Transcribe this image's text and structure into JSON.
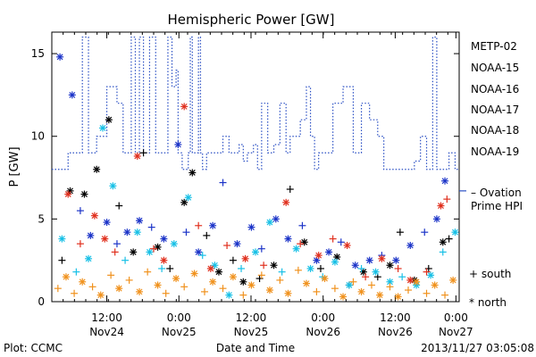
{
  "chart_data": {
    "type": "scatter",
    "title": "Hemispheric Power [GW]",
    "ylabel": "P [GW]",
    "xlabel": "Date and Time",
    "ylim": [
      0,
      16.3
    ],
    "yticks": [
      0,
      5,
      10,
      15
    ],
    "xlim": [
      0,
      1
    ],
    "xticks": [
      {
        "x": 0.135,
        "time": "12:00",
        "date": "Nov24"
      },
      {
        "x": 0.312,
        "time": "0:00",
        "date": "Nov25"
      },
      {
        "x": 0.489,
        "time": "12:00",
        "date": "Nov25"
      },
      {
        "x": 0.666,
        "time": "0:00",
        "date": "Nov26"
      },
      {
        "x": 0.843,
        "time": "12:00",
        "date": "Nov26"
      },
      {
        "x": 0.992,
        "time": "0:00",
        "date": "Nov27"
      }
    ],
    "minor_tick_count": 36,
    "legend_placement": "right",
    "series": [
      {
        "name": "METP-02",
        "color": "#000000"
      },
      {
        "name": "NOAA-15",
        "color": "#1c34c8"
      },
      {
        "name": "NOAA-16",
        "color": "#18c0e6"
      },
      {
        "name": "NOAA-17",
        "color": "#2ae88c"
      },
      {
        "name": "NOAA-18",
        "color": "#f0921e"
      },
      {
        "name": "NOAA-19",
        "color": "#e0301e"
      }
    ],
    "markers": [
      {
        "label": "+ south",
        "kind": "south"
      },
      {
        "label": "* north",
        "kind": "north"
      }
    ],
    "ovation_line": {
      "label_line1": "– Ovation",
      "label_line2": "Prime HPI",
      "color": "#2a4fc4",
      "level": 6.7,
      "steps": [
        [
          0.0,
          8.0
        ],
        [
          0.04,
          9.0
        ],
        [
          0.075,
          16.0
        ],
        [
          0.09,
          9.0
        ],
        [
          0.11,
          10.0
        ],
        [
          0.135,
          13.0
        ],
        [
          0.16,
          12.0
        ],
        [
          0.175,
          9.0
        ],
        [
          0.195,
          16.0
        ],
        [
          0.205,
          9.0
        ],
        [
          0.215,
          16.0
        ],
        [
          0.225,
          9.0
        ],
        [
          0.24,
          16.0
        ],
        [
          0.255,
          9.0
        ],
        [
          0.285,
          16.0
        ],
        [
          0.295,
          13.0
        ],
        [
          0.305,
          14.0
        ],
        [
          0.31,
          9.0
        ],
        [
          0.32,
          8.0
        ],
        [
          0.335,
          9.0
        ],
        [
          0.34,
          16.0
        ],
        [
          0.345,
          9.0
        ],
        [
          0.36,
          16.0
        ],
        [
          0.365,
          9.0
        ],
        [
          0.37,
          8.0
        ],
        [
          0.38,
          9.0
        ],
        [
          0.42,
          10.0
        ],
        [
          0.435,
          9.0
        ],
        [
          0.46,
          9.5
        ],
        [
          0.47,
          8.5
        ],
        [
          0.48,
          9.0
        ],
        [
          0.495,
          9.5
        ],
        [
          0.505,
          8.0
        ],
        [
          0.515,
          12.0
        ],
        [
          0.53,
          9.0
        ],
        [
          0.545,
          9.5
        ],
        [
          0.56,
          12.0
        ],
        [
          0.575,
          9.0
        ],
        [
          0.585,
          10.0
        ],
        [
          0.61,
          11.0
        ],
        [
          0.625,
          13.0
        ],
        [
          0.635,
          10.0
        ],
        [
          0.645,
          8.0
        ],
        [
          0.655,
          9.0
        ],
        [
          0.69,
          12.0
        ],
        [
          0.715,
          13.0
        ],
        [
          0.74,
          9.0
        ],
        [
          0.76,
          12.0
        ],
        [
          0.78,
          11.0
        ],
        [
          0.8,
          10.0
        ],
        [
          0.815,
          8.0
        ],
        [
          0.89,
          8.5
        ],
        [
          0.905,
          10.0
        ],
        [
          0.92,
          8.0
        ],
        [
          0.935,
          16.0
        ],
        [
          0.945,
          8.0
        ],
        [
          0.965,
          8.0
        ],
        [
          0.975,
          9.0
        ],
        [
          0.99,
          8.0
        ],
        [
          1.0,
          8.0
        ]
      ]
    },
    "points": [
      {
        "s": 0,
        "m": "south",
        "x": 0.025,
        "y": 2.5
      },
      {
        "s": 0,
        "m": "north",
        "x": 0.045,
        "y": 6.7
      },
      {
        "s": 0,
        "m": "north",
        "x": 0.08,
        "y": 6.5
      },
      {
        "s": 0,
        "m": "north",
        "x": 0.11,
        "y": 8.0
      },
      {
        "s": 0,
        "m": "north",
        "x": 0.14,
        "y": 11.0
      },
      {
        "s": 0,
        "m": "south",
        "x": 0.165,
        "y": 5.8
      },
      {
        "s": 0,
        "m": "north",
        "x": 0.2,
        "y": 3.0
      },
      {
        "s": 0,
        "m": "south",
        "x": 0.225,
        "y": 9.0
      },
      {
        "s": 0,
        "m": "north",
        "x": 0.26,
        "y": 3.3
      },
      {
        "s": 0,
        "m": "south",
        "x": 0.29,
        "y": 2.0
      },
      {
        "s": 0,
        "m": "north",
        "x": 0.325,
        "y": 6.0
      },
      {
        "s": 0,
        "m": "north",
        "x": 0.345,
        "y": 7.8
      },
      {
        "s": 0,
        "m": "south",
        "x": 0.38,
        "y": 4.0
      },
      {
        "s": 0,
        "m": "north",
        "x": 0.41,
        "y": 1.8
      },
      {
        "s": 0,
        "m": "south",
        "x": 0.445,
        "y": 2.5
      },
      {
        "s": 0,
        "m": "north",
        "x": 0.47,
        "y": 1.2
      },
      {
        "s": 0,
        "m": "south",
        "x": 0.51,
        "y": 1.4
      },
      {
        "s": 0,
        "m": "north",
        "x": 0.545,
        "y": 2.2
      },
      {
        "s": 0,
        "m": "south",
        "x": 0.585,
        "y": 6.8
      },
      {
        "s": 0,
        "m": "north",
        "x": 0.62,
        "y": 3.6
      },
      {
        "s": 0,
        "m": "south",
        "x": 0.66,
        "y": 2.0
      },
      {
        "s": 0,
        "m": "north",
        "x": 0.7,
        "y": 2.7
      },
      {
        "s": 0,
        "m": "south",
        "x": 0.73,
        "y": 1.0
      },
      {
        "s": 0,
        "m": "north",
        "x": 0.765,
        "y": 1.8
      },
      {
        "s": 0,
        "m": "south",
        "x": 0.8,
        "y": 1.5
      },
      {
        "s": 0,
        "m": "north",
        "x": 0.83,
        "y": 2.2
      },
      {
        "s": 0,
        "m": "south",
        "x": 0.855,
        "y": 4.2
      },
      {
        "s": 0,
        "m": "north",
        "x": 0.89,
        "y": 1.3
      },
      {
        "s": 0,
        "m": "south",
        "x": 0.925,
        "y": 2.0
      },
      {
        "s": 0,
        "m": "north",
        "x": 0.96,
        "y": 3.6
      },
      {
        "s": 0,
        "m": "south",
        "x": 0.975,
        "y": 3.8
      },
      {
        "s": 1,
        "m": "north",
        "x": 0.02,
        "y": 14.8
      },
      {
        "s": 1,
        "m": "north",
        "x": 0.05,
        "y": 12.5
      },
      {
        "s": 1,
        "m": "south",
        "x": 0.07,
        "y": 5.5
      },
      {
        "s": 1,
        "m": "north",
        "x": 0.095,
        "y": 4.0
      },
      {
        "s": 1,
        "m": "north",
        "x": 0.135,
        "y": 4.8
      },
      {
        "s": 1,
        "m": "south",
        "x": 0.16,
        "y": 3.5
      },
      {
        "s": 1,
        "m": "north",
        "x": 0.185,
        "y": 4.2
      },
      {
        "s": 1,
        "m": "north",
        "x": 0.215,
        "y": 4.9
      },
      {
        "s": 1,
        "m": "south",
        "x": 0.245,
        "y": 4.5
      },
      {
        "s": 1,
        "m": "north",
        "x": 0.275,
        "y": 3.8
      },
      {
        "s": 1,
        "m": "north",
        "x": 0.31,
        "y": 9.5
      },
      {
        "s": 1,
        "m": "south",
        "x": 0.33,
        "y": 4.2
      },
      {
        "s": 1,
        "m": "north",
        "x": 0.36,
        "y": 3.0
      },
      {
        "s": 1,
        "m": "north",
        "x": 0.395,
        "y": 4.6
      },
      {
        "s": 1,
        "m": "south",
        "x": 0.42,
        "y": 7.2
      },
      {
        "s": 1,
        "m": "north",
        "x": 0.455,
        "y": 3.5
      },
      {
        "s": 1,
        "m": "north",
        "x": 0.49,
        "y": 4.5
      },
      {
        "s": 1,
        "m": "south",
        "x": 0.515,
        "y": 3.2
      },
      {
        "s": 1,
        "m": "north",
        "x": 0.55,
        "y": 5.0
      },
      {
        "s": 1,
        "m": "north",
        "x": 0.58,
        "y": 3.8
      },
      {
        "s": 1,
        "m": "south",
        "x": 0.615,
        "y": 4.6
      },
      {
        "s": 1,
        "m": "north",
        "x": 0.65,
        "y": 2.5
      },
      {
        "s": 1,
        "m": "north",
        "x": 0.68,
        "y": 3.0
      },
      {
        "s": 1,
        "m": "south",
        "x": 0.71,
        "y": 3.6
      },
      {
        "s": 1,
        "m": "north",
        "x": 0.745,
        "y": 2.2
      },
      {
        "s": 1,
        "m": "north",
        "x": 0.78,
        "y": 2.5
      },
      {
        "s": 1,
        "m": "south",
        "x": 0.81,
        "y": 2.8
      },
      {
        "s": 1,
        "m": "north",
        "x": 0.845,
        "y": 2.5
      },
      {
        "s": 1,
        "m": "north",
        "x": 0.88,
        "y": 3.4
      },
      {
        "s": 1,
        "m": "south",
        "x": 0.915,
        "y": 4.2
      },
      {
        "s": 1,
        "m": "north",
        "x": 0.945,
        "y": 5.0
      },
      {
        "s": 1,
        "m": "north",
        "x": 0.965,
        "y": 7.3
      },
      {
        "s": 2,
        "m": "north",
        "x": 0.025,
        "y": 3.8
      },
      {
        "s": 2,
        "m": "south",
        "x": 0.06,
        "y": 1.8
      },
      {
        "s": 2,
        "m": "north",
        "x": 0.09,
        "y": 2.6
      },
      {
        "s": 2,
        "m": "north",
        "x": 0.125,
        "y": 10.5
      },
      {
        "s": 2,
        "m": "north",
        "x": 0.15,
        "y": 7.0
      },
      {
        "s": 2,
        "m": "south",
        "x": 0.18,
        "y": 2.5
      },
      {
        "s": 2,
        "m": "north",
        "x": 0.21,
        "y": 4.2
      },
      {
        "s": 2,
        "m": "north",
        "x": 0.24,
        "y": 3.0
      },
      {
        "s": 2,
        "m": "south",
        "x": 0.27,
        "y": 2.0
      },
      {
        "s": 2,
        "m": "north",
        "x": 0.3,
        "y": 3.5
      },
      {
        "s": 2,
        "m": "north",
        "x": 0.335,
        "y": 6.3
      },
      {
        "s": 2,
        "m": "south",
        "x": 0.37,
        "y": 2.8
      },
      {
        "s": 2,
        "m": "north",
        "x": 0.4,
        "y": 2.2
      },
      {
        "s": 2,
        "m": "north",
        "x": 0.435,
        "y": 0.4
      },
      {
        "s": 2,
        "m": "south",
        "x": 0.465,
        "y": 2.0
      },
      {
        "s": 2,
        "m": "north",
        "x": 0.5,
        "y": 3.0
      },
      {
        "s": 2,
        "m": "north",
        "x": 0.535,
        "y": 4.8
      },
      {
        "s": 2,
        "m": "south",
        "x": 0.565,
        "y": 1.8
      },
      {
        "s": 2,
        "m": "north",
        "x": 0.6,
        "y": 3.2
      },
      {
        "s": 2,
        "m": "north",
        "x": 0.635,
        "y": 2.0
      },
      {
        "s": 2,
        "m": "south",
        "x": 0.665,
        "y": 1.5
      },
      {
        "s": 2,
        "m": "north",
        "x": 0.695,
        "y": 2.4
      },
      {
        "s": 2,
        "m": "north",
        "x": 0.73,
        "y": 1.0
      },
      {
        "s": 2,
        "m": "south",
        "x": 0.76,
        "y": 2.0
      },
      {
        "s": 2,
        "m": "north",
        "x": 0.795,
        "y": 1.8
      },
      {
        "s": 2,
        "m": "north",
        "x": 0.83,
        "y": 1.2
      },
      {
        "s": 2,
        "m": "south",
        "x": 0.86,
        "y": 1.5
      },
      {
        "s": 2,
        "m": "north",
        "x": 0.895,
        "y": 1.0
      },
      {
        "s": 2,
        "m": "north",
        "x": 0.93,
        "y": 1.6
      },
      {
        "s": 2,
        "m": "south",
        "x": 0.96,
        "y": 3.0
      },
      {
        "s": 2,
        "m": "north",
        "x": 0.99,
        "y": 4.2
      },
      {
        "s": 4,
        "m": "south",
        "x": 0.015,
        "y": 0.8
      },
      {
        "s": 4,
        "m": "north",
        "x": 0.035,
        "y": 1.5
      },
      {
        "s": 4,
        "m": "south",
        "x": 0.055,
        "y": 0.5
      },
      {
        "s": 4,
        "m": "north",
        "x": 0.075,
        "y": 1.2
      },
      {
        "s": 4,
        "m": "south",
        "x": 0.1,
        "y": 0.9
      },
      {
        "s": 4,
        "m": "north",
        "x": 0.12,
        "y": 0.4
      },
      {
        "s": 4,
        "m": "south",
        "x": 0.145,
        "y": 1.6
      },
      {
        "s": 4,
        "m": "north",
        "x": 0.165,
        "y": 0.8
      },
      {
        "s": 4,
        "m": "south",
        "x": 0.19,
        "y": 1.3
      },
      {
        "s": 4,
        "m": "north",
        "x": 0.215,
        "y": 0.6
      },
      {
        "s": 4,
        "m": "south",
        "x": 0.235,
        "y": 1.8
      },
      {
        "s": 4,
        "m": "north",
        "x": 0.26,
        "y": 1.0
      },
      {
        "s": 4,
        "m": "south",
        "x": 0.28,
        "y": 0.5
      },
      {
        "s": 4,
        "m": "north",
        "x": 0.305,
        "y": 1.4
      },
      {
        "s": 4,
        "m": "south",
        "x": 0.325,
        "y": 0.9
      },
      {
        "s": 4,
        "m": "north",
        "x": 0.35,
        "y": 1.7
      },
      {
        "s": 4,
        "m": "south",
        "x": 0.375,
        "y": 0.6
      },
      {
        "s": 4,
        "m": "north",
        "x": 0.395,
        "y": 1.2
      },
      {
        "s": 4,
        "m": "south",
        "x": 0.42,
        "y": 0.8
      },
      {
        "s": 4,
        "m": "north",
        "x": 0.445,
        "y": 1.5
      },
      {
        "s": 4,
        "m": "south",
        "x": 0.47,
        "y": 0.4
      },
      {
        "s": 4,
        "m": "north",
        "x": 0.49,
        "y": 1.0
      },
      {
        "s": 4,
        "m": "south",
        "x": 0.515,
        "y": 1.6
      },
      {
        "s": 4,
        "m": "north",
        "x": 0.535,
        "y": 0.7
      },
      {
        "s": 4,
        "m": "south",
        "x": 0.56,
        "y": 1.3
      },
      {
        "s": 4,
        "m": "north",
        "x": 0.58,
        "y": 0.5
      },
      {
        "s": 4,
        "m": "south",
        "x": 0.605,
        "y": 1.9
      },
      {
        "s": 4,
        "m": "north",
        "x": 0.625,
        "y": 1.1
      },
      {
        "s": 4,
        "m": "south",
        "x": 0.65,
        "y": 0.6
      },
      {
        "s": 4,
        "m": "north",
        "x": 0.67,
        "y": 1.4
      },
      {
        "s": 4,
        "m": "south",
        "x": 0.695,
        "y": 0.8
      },
      {
        "s": 4,
        "m": "north",
        "x": 0.715,
        "y": 0.3
      },
      {
        "s": 4,
        "m": "south",
        "x": 0.74,
        "y": 1.2
      },
      {
        "s": 4,
        "m": "north",
        "x": 0.76,
        "y": 0.6
      },
      {
        "s": 4,
        "m": "south",
        "x": 0.785,
        "y": 1.0
      },
      {
        "s": 4,
        "m": "north",
        "x": 0.805,
        "y": 0.4
      },
      {
        "s": 4,
        "m": "south",
        "x": 0.83,
        "y": 0.9
      },
      {
        "s": 4,
        "m": "north",
        "x": 0.85,
        "y": 0.3
      },
      {
        "s": 4,
        "m": "south",
        "x": 0.875,
        "y": 0.7
      },
      {
        "s": 4,
        "m": "north",
        "x": 0.895,
        "y": 1.2
      },
      {
        "s": 4,
        "m": "south",
        "x": 0.92,
        "y": 0.5
      },
      {
        "s": 4,
        "m": "north",
        "x": 0.94,
        "y": 1.0
      },
      {
        "s": 4,
        "m": "south",
        "x": 0.965,
        "y": 0.4
      },
      {
        "s": 4,
        "m": "north",
        "x": 0.985,
        "y": 1.3
      },
      {
        "s": 5,
        "m": "north",
        "x": 0.04,
        "y": 6.5
      },
      {
        "s": 5,
        "m": "south",
        "x": 0.07,
        "y": 3.5
      },
      {
        "s": 5,
        "m": "north",
        "x": 0.105,
        "y": 5.2
      },
      {
        "s": 5,
        "m": "north",
        "x": 0.13,
        "y": 3.8
      },
      {
        "s": 5,
        "m": "south",
        "x": 0.155,
        "y": 3.0
      },
      {
        "s": 5,
        "m": "north",
        "x": 0.21,
        "y": 8.8
      },
      {
        "s": 5,
        "m": "south",
        "x": 0.25,
        "y": 3.2
      },
      {
        "s": 5,
        "m": "north",
        "x": 0.275,
        "y": 2.5
      },
      {
        "s": 5,
        "m": "north",
        "x": 0.325,
        "y": 11.8
      },
      {
        "s": 5,
        "m": "south",
        "x": 0.36,
        "y": 4.6
      },
      {
        "s": 5,
        "m": "north",
        "x": 0.39,
        "y": 2.0
      },
      {
        "s": 5,
        "m": "south",
        "x": 0.43,
        "y": 3.4
      },
      {
        "s": 5,
        "m": "north",
        "x": 0.475,
        "y": 2.6
      },
      {
        "s": 5,
        "m": "south",
        "x": 0.52,
        "y": 2.2
      },
      {
        "s": 5,
        "m": "north",
        "x": 0.575,
        "y": 6.0
      },
      {
        "s": 5,
        "m": "south",
        "x": 0.61,
        "y": 3.5
      },
      {
        "s": 5,
        "m": "north",
        "x": 0.655,
        "y": 2.8
      },
      {
        "s": 5,
        "m": "south",
        "x": 0.69,
        "y": 3.8
      },
      {
        "s": 5,
        "m": "north",
        "x": 0.725,
        "y": 3.4
      },
      {
        "s": 5,
        "m": "south",
        "x": 0.77,
        "y": 1.5
      },
      {
        "s": 5,
        "m": "north",
        "x": 0.81,
        "y": 2.6
      },
      {
        "s": 5,
        "m": "south",
        "x": 0.85,
        "y": 2.0
      },
      {
        "s": 5,
        "m": "north",
        "x": 0.88,
        "y": 1.3
      },
      {
        "s": 5,
        "m": "south",
        "x": 0.92,
        "y": 1.8
      },
      {
        "s": 5,
        "m": "north",
        "x": 0.955,
        "y": 5.8
      },
      {
        "s": 5,
        "m": "south",
        "x": 0.97,
        "y": 6.2
      }
    ]
  },
  "footer": {
    "plot_label": "Plot: CCMC",
    "timestamp": "2013/11/27 03:05:08"
  }
}
